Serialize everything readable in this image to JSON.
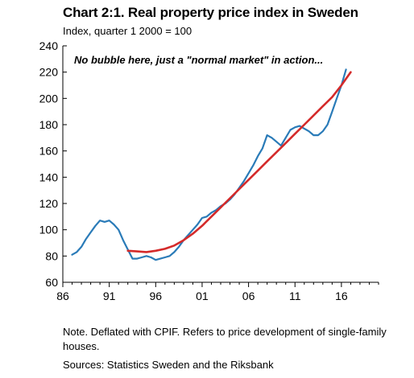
{
  "chart_data": {
    "type": "line",
    "title": "Chart 2:1. Real property price index in Sweden",
    "subtitle": "Index, quarter 1 2000 = 100",
    "xlabel": "",
    "ylabel": "",
    "xlim": [
      1986,
      2020
    ],
    "ylim": [
      60,
      240
    ],
    "x_ticks": [
      1986,
      1991,
      1996,
      2001,
      2006,
      2011,
      2016
    ],
    "x_tick_labels": [
      "86",
      "91",
      "96",
      "01",
      "06",
      "11",
      "16"
    ],
    "y_ticks": [
      60,
      80,
      100,
      120,
      140,
      160,
      180,
      200,
      220,
      240
    ],
    "y_tick_labels": [
      "60",
      "80",
      "100",
      "120",
      "140",
      "160",
      "180",
      "200",
      "220",
      "240"
    ],
    "grid": false,
    "annotation": "No bubble here, just a \"normal market\" in action...",
    "series": [
      {
        "color": "#2a7bb8",
        "points": [
          [
            1987.0,
            81
          ],
          [
            1987.5,
            83
          ],
          [
            1988.0,
            87
          ],
          [
            1988.5,
            93
          ],
          [
            1989.0,
            98
          ],
          [
            1989.5,
            103
          ],
          [
            1990.0,
            107
          ],
          [
            1990.5,
            106
          ],
          [
            1991.0,
            107
          ],
          [
            1991.5,
            104
          ],
          [
            1992.0,
            100
          ],
          [
            1992.5,
            92
          ],
          [
            1993.0,
            85
          ],
          [
            1993.5,
            78
          ],
          [
            1994.0,
            78
          ],
          [
            1994.5,
            79
          ],
          [
            1995.0,
            80
          ],
          [
            1995.5,
            79
          ],
          [
            1996.0,
            77
          ],
          [
            1996.5,
            78
          ],
          [
            1997.0,
            79
          ],
          [
            1997.5,
            80
          ],
          [
            1998.0,
            83
          ],
          [
            1998.5,
            87
          ],
          [
            1999.0,
            92
          ],
          [
            1999.5,
            96
          ],
          [
            2000.0,
            100
          ],
          [
            2000.5,
            104
          ],
          [
            2001.0,
            109
          ],
          [
            2001.5,
            110
          ],
          [
            2002.0,
            113
          ],
          [
            2002.5,
            115
          ],
          [
            2003.0,
            118
          ],
          [
            2003.5,
            120
          ],
          [
            2004.0,
            123
          ],
          [
            2004.5,
            127
          ],
          [
            2005.0,
            132
          ],
          [
            2005.5,
            137
          ],
          [
            2006.0,
            143
          ],
          [
            2006.5,
            149
          ],
          [
            2007.0,
            156
          ],
          [
            2007.5,
            162
          ],
          [
            2008.0,
            172
          ],
          [
            2008.5,
            170
          ],
          [
            2009.0,
            167
          ],
          [
            2009.5,
            164
          ],
          [
            2010.0,
            170
          ],
          [
            2010.5,
            176
          ],
          [
            2011.0,
            178
          ],
          [
            2011.5,
            179
          ],
          [
            2012.0,
            177
          ],
          [
            2012.5,
            175
          ],
          [
            2013.0,
            172
          ],
          [
            2013.5,
            172
          ],
          [
            2014.0,
            175
          ],
          [
            2014.5,
            180
          ],
          [
            2015.0,
            190
          ],
          [
            2015.5,
            200
          ],
          [
            2016.0,
            210
          ],
          [
            2016.5,
            222
          ]
        ]
      },
      {
        "color": "#d42a2a",
        "points": [
          [
            1993.0,
            84
          ],
          [
            1994.0,
            83.5
          ],
          [
            1995.0,
            83
          ],
          [
            1996.0,
            84
          ],
          [
            1997.0,
            85.5
          ],
          [
            1998.0,
            88
          ],
          [
            1999.0,
            92
          ],
          [
            2000.0,
            97
          ],
          [
            2001.0,
            103
          ],
          [
            2002.0,
            110
          ],
          [
            2003.0,
            117
          ],
          [
            2004.0,
            124
          ],
          [
            2005.0,
            131
          ],
          [
            2006.0,
            138
          ],
          [
            2007.0,
            145
          ],
          [
            2008.0,
            152
          ],
          [
            2009.0,
            159
          ],
          [
            2010.0,
            166
          ],
          [
            2011.0,
            173
          ],
          [
            2012.0,
            180
          ],
          [
            2013.0,
            187
          ],
          [
            2014.0,
            194
          ],
          [
            2015.0,
            201
          ],
          [
            2016.0,
            210
          ],
          [
            2017.0,
            220
          ]
        ]
      }
    ]
  },
  "note": "Note. Deflated with CPIF. Refers to price development of single-family houses.",
  "sources": "Sources: Statistics Sweden and the Riksbank"
}
